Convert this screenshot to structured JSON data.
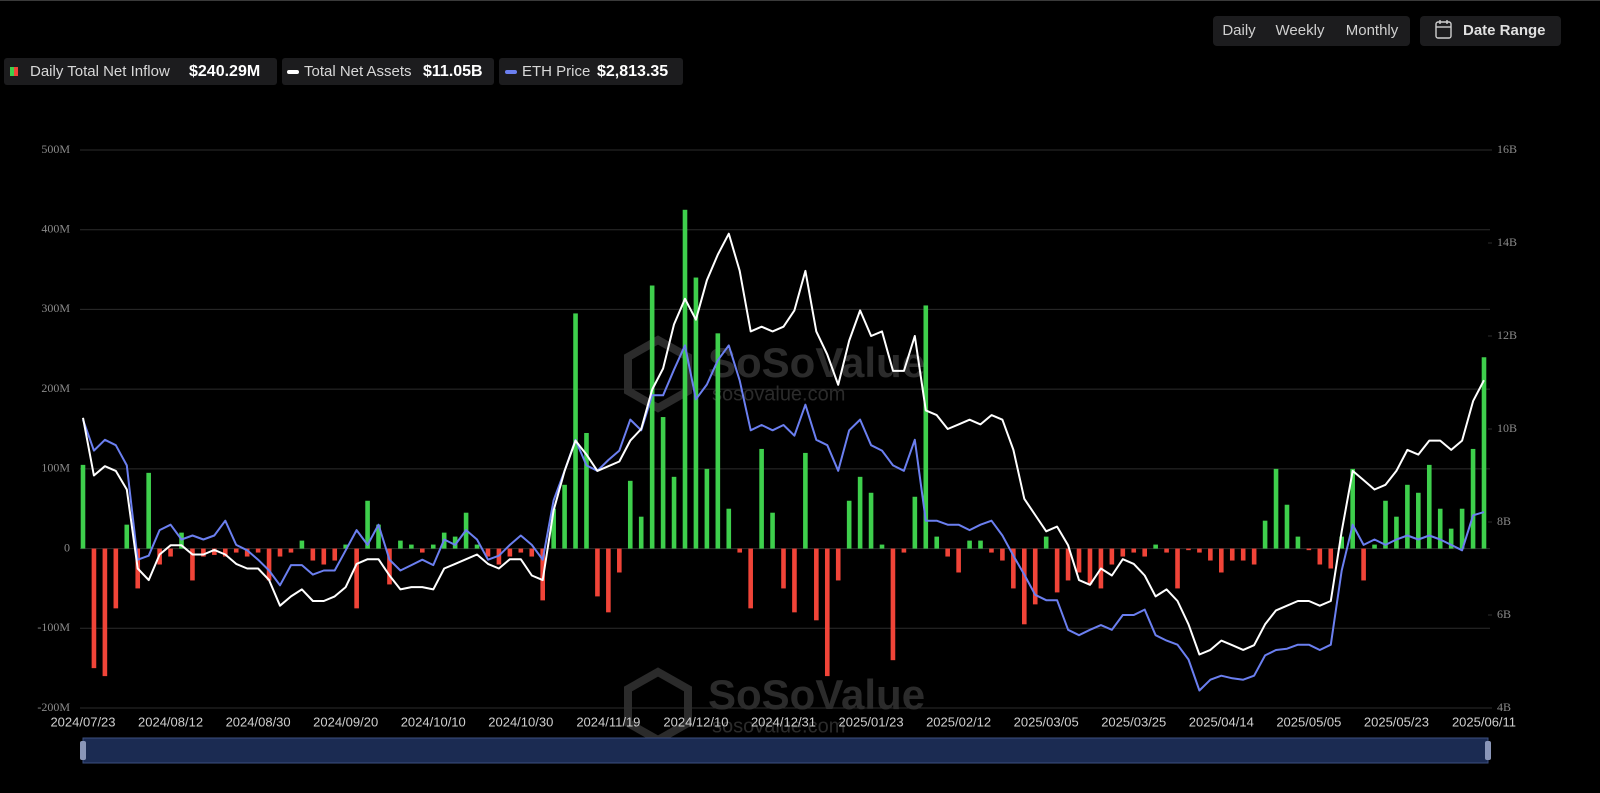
{
  "controls": {
    "periods": [
      "Daily",
      "Weekly",
      "Monthly"
    ],
    "active": 0,
    "date_range": "Date Range"
  },
  "watermark": {
    "brand": "SoSoValue",
    "site": "sosovalue.com"
  },
  "chart_data": {
    "type": "bar-line",
    "categories": [
      "2024/07/23",
      null,
      null,
      null,
      null,
      null,
      null,
      null,
      "2024/08/12",
      null,
      null,
      null,
      null,
      null,
      null,
      null,
      "2024/08/30",
      null,
      null,
      null,
      null,
      null,
      null,
      null,
      "2024/09/20",
      null,
      null,
      null,
      null,
      null,
      null,
      null,
      "2024/10/10",
      null,
      null,
      null,
      null,
      null,
      null,
      null,
      "2024/10/30",
      null,
      null,
      null,
      null,
      null,
      null,
      null,
      "2024/11/19",
      null,
      null,
      null,
      null,
      null,
      null,
      null,
      "2024/12/10",
      null,
      null,
      null,
      null,
      null,
      null,
      null,
      "2024/12/31",
      null,
      null,
      null,
      null,
      null,
      null,
      null,
      "2025/01/23",
      null,
      null,
      null,
      null,
      null,
      null,
      null,
      "2025/02/12",
      null,
      null,
      null,
      null,
      null,
      null,
      null,
      "2025/03/05",
      null,
      null,
      null,
      null,
      null,
      null,
      null,
      "2025/03/25",
      null,
      null,
      null,
      null,
      null,
      null,
      null,
      "2025/04/14",
      null,
      null,
      null,
      null,
      null,
      null,
      null,
      "2025/05/05",
      null,
      null,
      null,
      null,
      null,
      null,
      null,
      "2025/05/23",
      null,
      null,
      null,
      null,
      null,
      null,
      null,
      "2025/06/11"
    ],
    "series": [
      {
        "name": "Daily Total Net Inflow",
        "current_label": "$240.29M",
        "type": "bar",
        "axis": "y",
        "color": "#3ecf4c",
        "negative_color": "#f04438",
        "values": [
          105,
          -150,
          -160,
          -75,
          30,
          -50,
          95,
          -20,
          -10,
          20,
          -40,
          -10,
          -8,
          -10,
          -5,
          -10,
          -5,
          -40,
          -10,
          -5,
          10,
          -15,
          -20,
          -15,
          5,
          -75,
          60,
          30,
          -45,
          10,
          5,
          -5,
          5,
          20,
          15,
          45,
          5,
          -10,
          -20,
          -10,
          -5,
          -10,
          -65,
          50,
          80,
          295,
          145,
          -60,
          -80,
          -30,
          85,
          40,
          330,
          165,
          90,
          425,
          340,
          100,
          270,
          50,
          -5,
          -75,
          125,
          45,
          -50,
          -80,
          120,
          -90,
          -160,
          -40,
          60,
          90,
          70,
          5,
          -140,
          -5,
          65,
          305,
          15,
          -10,
          -30,
          10,
          10,
          -5,
          -15,
          -50,
          -95,
          -70,
          15,
          -55,
          -40,
          -30,
          -45,
          -50,
          -20,
          -10,
          -5,
          -10,
          5,
          -5,
          -50,
          -2,
          -5,
          -15,
          -30,
          -15,
          -15,
          -20,
          35,
          100,
          55,
          15,
          -2,
          -20,
          -25,
          15,
          100,
          -40,
          5,
          60,
          40,
          80,
          70,
          105,
          50,
          25,
          50,
          125,
          240
        ]
      },
      {
        "name": "Total Net Assets",
        "current_label": "$11.05B",
        "type": "line",
        "axis": "y2",
        "color": "#ffffff",
        "values": [
          10.24,
          9.0,
          9.2,
          9.1,
          8.7,
          7.0,
          6.75,
          7.3,
          7.5,
          7.5,
          7.3,
          7.3,
          7.4,
          7.3,
          7.1,
          7.0,
          7.0,
          6.75,
          6.2,
          6.4,
          6.55,
          6.3,
          6.3,
          6.4,
          6.6,
          7.1,
          7.2,
          7.2,
          6.85,
          6.55,
          6.6,
          6.6,
          6.55,
          7.0,
          7.1,
          7.2,
          7.3,
          7.1,
          7.0,
          7.2,
          7.2,
          6.85,
          6.75,
          8.25,
          9.1,
          9.75,
          9.45,
          9.1,
          9.2,
          9.3,
          9.75,
          10.0,
          10.85,
          11.3,
          12.25,
          12.8,
          12.35,
          13.2,
          13.75,
          14.2,
          13.4,
          12.1,
          12.2,
          12.1,
          12.2,
          12.55,
          13.4,
          12.1,
          11.6,
          10.95,
          11.9,
          12.55,
          12.0,
          12.1,
          11.25,
          11.25,
          12.0,
          10.4,
          10.3,
          10.0,
          10.1,
          10.2,
          10.1,
          10.3,
          10.2,
          9.55,
          8.5,
          8.15,
          7.8,
          7.9,
          7.5,
          6.75,
          6.65,
          7.0,
          6.85,
          7.2,
          7.1,
          6.85,
          6.4,
          6.55,
          6.3,
          5.8,
          5.15,
          5.25,
          5.45,
          5.35,
          5.25,
          5.35,
          5.8,
          6.1,
          6.2,
          6.3,
          6.3,
          6.2,
          6.3,
          7.8,
          9.1,
          8.9,
          8.7,
          8.8,
          9.1,
          9.55,
          9.45,
          9.75,
          9.75,
          9.55,
          9.75,
          10.6,
          11.05
        ]
      },
      {
        "name": "ETH Price",
        "current_label": "$2,813.35",
        "type": "line",
        "axis": "y3",
        "color": "#6b7ff0",
        "values": [
          3500,
          3270,
          3350,
          3310,
          3160,
          2460,
          2490,
          2680,
          2720,
          2610,
          2640,
          2610,
          2640,
          2750,
          2570,
          2530,
          2460,
          2380,
          2270,
          2420,
          2420,
          2350,
          2380,
          2380,
          2530,
          2680,
          2570,
          2720,
          2460,
          2380,
          2420,
          2460,
          2420,
          2610,
          2570,
          2680,
          2610,
          2460,
          2490,
          2570,
          2640,
          2570,
          2460,
          2900,
          3120,
          3350,
          3160,
          3120,
          3200,
          3270,
          3500,
          3420,
          3680,
          3680,
          3870,
          4050,
          3650,
          3760,
          3940,
          4050,
          3790,
          3420,
          3460,
          3420,
          3460,
          3380,
          3610,
          3350,
          3310,
          3120,
          3420,
          3500,
          3310,
          3270,
          3160,
          3120,
          3350,
          2750,
          2750,
          2720,
          2720,
          2680,
          2720,
          2750,
          2640,
          2490,
          2350,
          2200,
          2160,
          2160,
          1940,
          1900,
          1940,
          1975,
          1940,
          2050,
          2050,
          2090,
          1900,
          1860,
          1830,
          1720,
          1490,
          1570,
          1600,
          1580,
          1570,
          1600,
          1750,
          1790,
          1800,
          1830,
          1830,
          1790,
          1830,
          2380,
          2720,
          2570,
          2610,
          2570,
          2610,
          2640,
          2610,
          2640,
          2610,
          2570,
          2530,
          2790,
          2813.35
        ]
      }
    ],
    "ylim": [
      -200,
      500
    ],
    "yticks": [
      {
        "value": -200,
        "label": "-200M"
      },
      {
        "value": -100,
        "label": "-100M"
      },
      0,
      {
        "value": 100,
        "label": "100M"
      },
      {
        "value": 200,
        "label": "200M"
      },
      {
        "value": 300,
        "label": "300M"
      },
      {
        "value": 400,
        "label": "400M"
      },
      {
        "value": 500,
        "label": "500M"
      }
    ],
    "y2lim": [
      4,
      16
    ],
    "y2ticks": [
      {
        "value": 4,
        "label": "4B"
      },
      {
        "value": 6,
        "label": "6B"
      },
      {
        "value": 8,
        "label": "8B"
      },
      {
        "value": 10,
        "label": "10B"
      },
      {
        "value": 12,
        "label": "12B"
      },
      {
        "value": 14,
        "label": "14B"
      },
      {
        "value": 16,
        "label": "16B"
      }
    ],
    "y3lim": [
      1360,
      5500
    ],
    "grid": true
  }
}
